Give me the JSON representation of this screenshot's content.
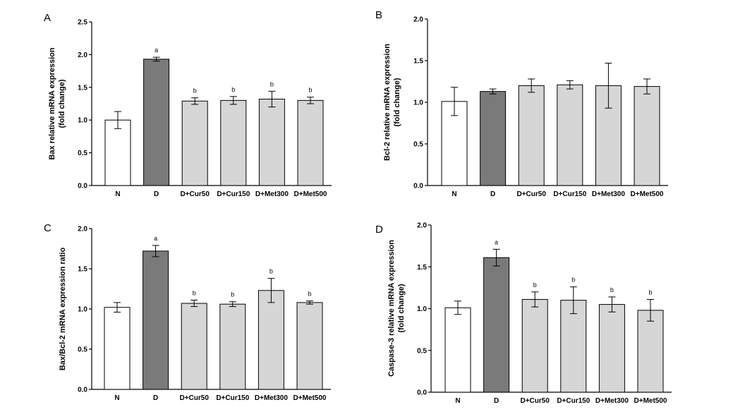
{
  "chart_data": [
    {
      "type": "bar",
      "panel": "A",
      "title": "",
      "xlabel": "",
      "ylabel": [
        "Bax relative mRNA expression",
        "(fold change)"
      ],
      "ylim": [
        0,
        2.5
      ],
      "yticks": [
        "0.0",
        "0.5",
        "1.0",
        "1.5",
        "2.0",
        "2.5"
      ],
      "categories": [
        "N",
        "D",
        "D+Cur50",
        "D+Cur150",
        "D+Met300",
        "D+Met500"
      ],
      "values": [
        1.0,
        1.93,
        1.29,
        1.3,
        1.32,
        1.3
      ],
      "errors": [
        0.13,
        0.03,
        0.05,
        0.06,
        0.12,
        0.05
      ],
      "letters": [
        "",
        "a",
        "b",
        "b",
        "b",
        "b"
      ],
      "colors": [
        "#ffffff",
        "#7a7a7a",
        "#d6d6d6",
        "#d6d6d6",
        "#d6d6d6",
        "#d6d6d6"
      ]
    },
    {
      "type": "bar",
      "panel": "B",
      "title": "",
      "xlabel": "",
      "ylabel": [
        "Bcl-2 relative mRNA expression",
        "(fold change)"
      ],
      "ylim": [
        0,
        2.0
      ],
      "yticks": [
        "0.0",
        "0.5",
        "1.0",
        "1.5",
        "2.0"
      ],
      "categories": [
        "N",
        "D",
        "D+Cur50",
        "D+Cur150",
        "D+Met300",
        "D+Met500"
      ],
      "values": [
        1.01,
        1.13,
        1.2,
        1.21,
        1.2,
        1.19
      ],
      "errors": [
        0.17,
        0.03,
        0.08,
        0.05,
        0.27,
        0.09
      ],
      "letters": [
        "",
        "",
        "",
        "",
        "",
        ""
      ],
      "colors": [
        "#ffffff",
        "#7a7a7a",
        "#d6d6d6",
        "#d6d6d6",
        "#d6d6d6",
        "#d6d6d6"
      ]
    },
    {
      "type": "bar",
      "panel": "C",
      "title": "",
      "xlabel": "",
      "ylabel": [
        "Bax/Bcl-2 mRNA expression ratio"
      ],
      "ylim": [
        0,
        2.0
      ],
      "yticks": [
        "0.0",
        "0.5",
        "1.0",
        "1.5",
        "2.0"
      ],
      "categories": [
        "N",
        "D",
        "D+Cur50",
        "D+Cur150",
        "D+Met300",
        "D+Met500"
      ],
      "values": [
        1.02,
        1.72,
        1.07,
        1.06,
        1.23,
        1.08
      ],
      "errors": [
        0.06,
        0.07,
        0.04,
        0.03,
        0.15,
        0.02
      ],
      "letters": [
        "",
        "a",
        "b",
        "b",
        "b",
        "b"
      ],
      "colors": [
        "#ffffff",
        "#7a7a7a",
        "#d6d6d6",
        "#d6d6d6",
        "#d6d6d6",
        "#d6d6d6"
      ]
    },
    {
      "type": "bar",
      "panel": "D",
      "title": "",
      "xlabel": "",
      "ylabel": [
        "Caspase-3 relative mRNA expression",
        "(fold change)"
      ],
      "ylim": [
        0,
        2.0
      ],
      "yticks": [
        "0.0",
        "0.5",
        "1.0",
        "1.5",
        "2.0"
      ],
      "categories": [
        "N",
        "D",
        "D+Cur50",
        "D+Cur150",
        "D+Met300",
        "D+Met500"
      ],
      "values": [
        1.01,
        1.61,
        1.11,
        1.1,
        1.05,
        0.98
      ],
      "errors": [
        0.08,
        0.1,
        0.09,
        0.16,
        0.09,
        0.13
      ],
      "letters": [
        "",
        "a",
        "b",
        "b",
        "b",
        "b"
      ],
      "colors": [
        "#ffffff",
        "#7a7a7a",
        "#d6d6d6",
        "#d6d6d6",
        "#d6d6d6",
        "#d6d6d6"
      ]
    }
  ]
}
